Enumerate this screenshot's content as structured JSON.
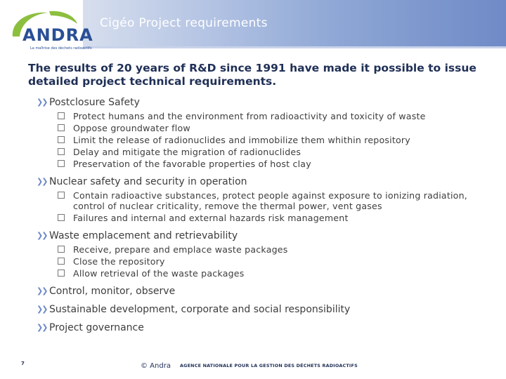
{
  "header": {
    "title": "Cigéo Project requirements"
  },
  "logo": {
    "name": "ANDRA",
    "tagline": "La maîtrise des déchets radioactifs"
  },
  "intro": "The results of 20 years of R&D since 1991 have made it possible to issue detailed project technical requirements.",
  "sections": [
    {
      "title": "Postclosure Safety",
      "items": [
        "Protect humans and the environment from radioactivity and toxicity of waste",
        "Oppose groundwater flow",
        "Limit the release of radionuclides and immobilize them whithin repository",
        "Delay and mitigate the migration of radionuclides",
        "Preservation of the favorable properties of host clay"
      ]
    },
    {
      "title": "Nuclear safety and security in operation",
      "items": [
        "Contain radioactive substances, protect people against exposure to ionizing radiation, control of nuclear criticality, remove the thermal power, vent gases",
        "Failures and internal and external hazards risk management"
      ]
    },
    {
      "title": "Waste emplacement and retrievability",
      "items": [
        "Receive, prepare and emplace waste packages",
        "Close the repository",
        "Allow retrieval of the waste packages"
      ]
    },
    {
      "title": "Control, monitor, observe",
      "items": []
    },
    {
      "title": "Sustainable development, corporate and social responsibility",
      "items": []
    },
    {
      "title": "Project governance",
      "items": []
    }
  ],
  "footer": {
    "page_number": "7",
    "copyright": "© Andra",
    "agency": "AGENCE NATIONALE POUR LA GESTION DES DÉCHETS RADIOACTIFS"
  }
}
